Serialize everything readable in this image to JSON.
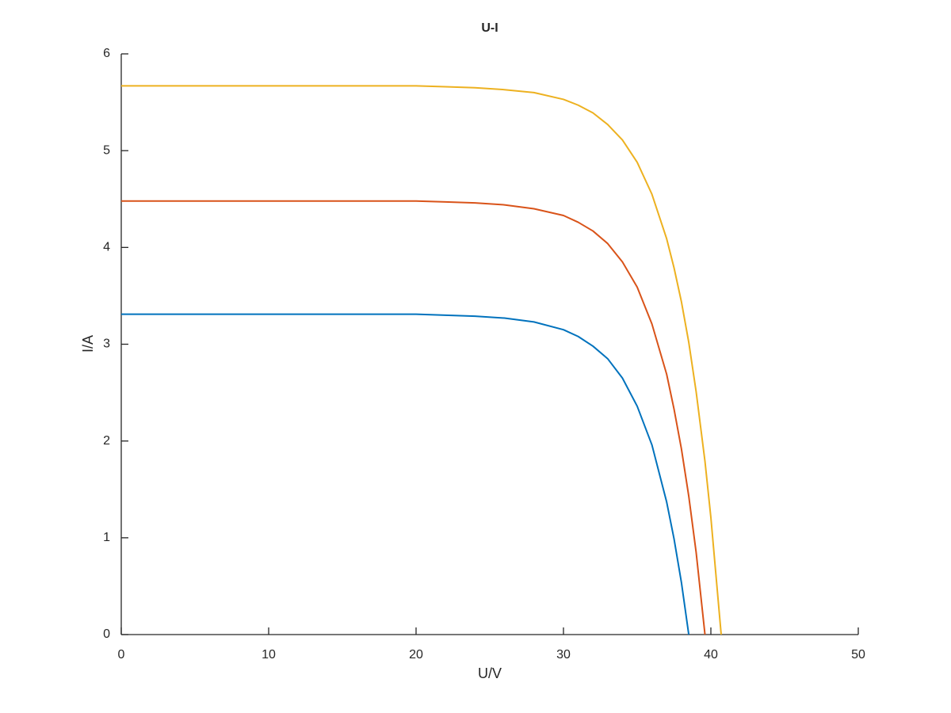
{
  "chart_data": {
    "type": "line",
    "title": "U-I",
    "x_label": "U/V",
    "y_label": "I/A",
    "x": [
      0,
      5,
      10,
      15,
      20,
      22,
      24,
      26,
      28,
      30,
      31,
      32,
      33,
      34,
      35,
      36,
      37,
      37.5,
      38,
      38.5,
      39,
      39.6,
      40,
      40.7
    ],
    "series": [
      {
        "color": "#0072bd",
        "values": [
          3.31,
          3.31,
          3.31,
          3.31,
          3.31,
          3.3,
          3.29,
          3.27,
          3.23,
          3.15,
          3.08,
          2.98,
          2.85,
          2.65,
          2.36,
          1.96,
          1.37,
          0.99,
          0.54,
          0,
          null,
          null,
          null,
          null
        ]
      },
      {
        "color": "#d95319",
        "values": [
          4.48,
          4.48,
          4.48,
          4.48,
          4.48,
          4.47,
          4.46,
          4.44,
          4.4,
          4.33,
          4.26,
          4.17,
          4.04,
          3.85,
          3.59,
          3.21,
          2.69,
          2.33,
          1.92,
          1.43,
          0.85,
          0,
          null,
          null
        ]
      },
      {
        "color": "#edb120",
        "values": [
          5.67,
          5.67,
          5.67,
          5.67,
          5.67,
          5.66,
          5.65,
          5.63,
          5.6,
          5.53,
          5.47,
          5.39,
          5.27,
          5.11,
          4.88,
          4.55,
          4.09,
          3.79,
          3.44,
          3.02,
          2.51,
          1.79,
          1.21,
          0
        ]
      }
    ],
    "xlim": [
      0,
      50
    ],
    "xticks": [
      0,
      10,
      20,
      30,
      40,
      50
    ],
    "ylim": [
      0,
      6
    ],
    "yticks": [
      0,
      1,
      2,
      3,
      4,
      5,
      6
    ]
  }
}
